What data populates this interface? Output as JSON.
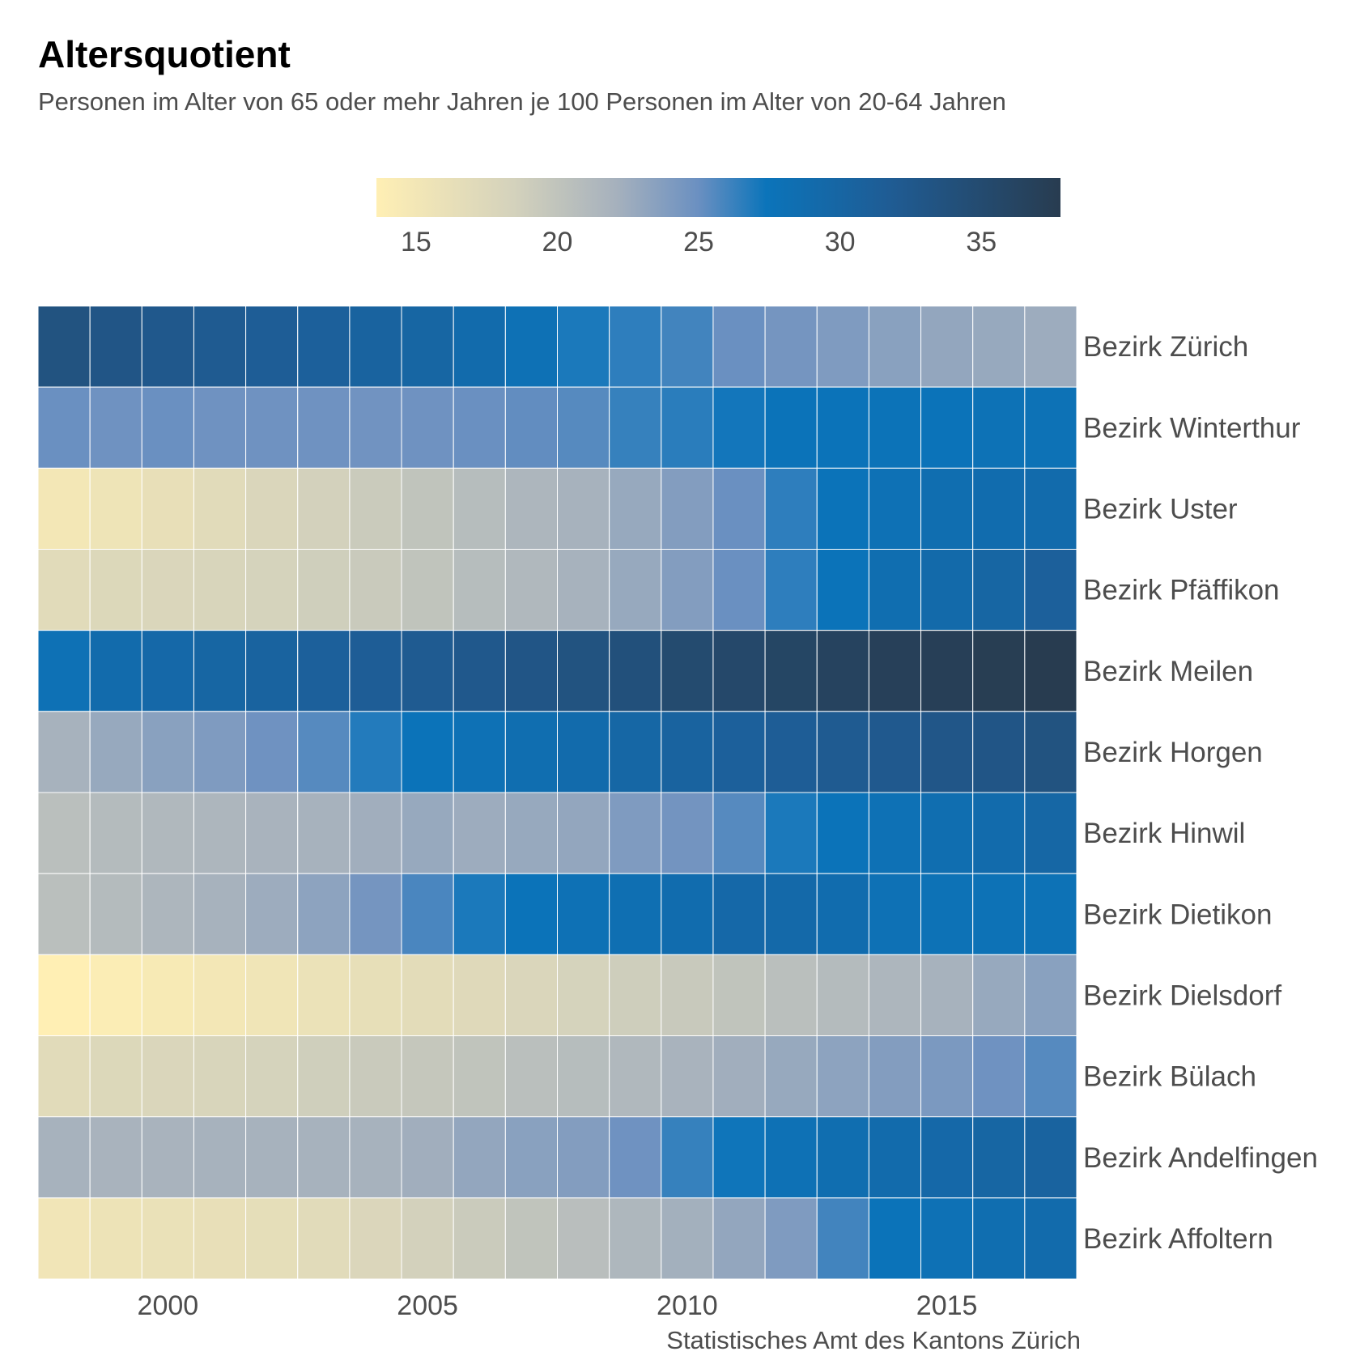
{
  "title": "Altersquotient",
  "subtitle": "Personen im Alter von 65 oder mehr Jahren je 100 Personen im Alter von 20-64 Jahren",
  "caption": "Statistisches Amt des Kantons Zürich",
  "chart_data": {
    "type": "heatmap",
    "years": [
      1998,
      1999,
      2000,
      2001,
      2002,
      2003,
      2004,
      2005,
      2006,
      2007,
      2008,
      2009,
      2010,
      2011,
      2012,
      2013,
      2014,
      2015,
      2016,
      2017
    ],
    "x_ticks": [
      2000,
      2005,
      2010,
      2015
    ],
    "legend": {
      "min": 13.6,
      "max": 37.8,
      "ticks": [
        15,
        20,
        25,
        30,
        35
      ],
      "position": "top"
    },
    "rows": [
      {
        "name": "Bezirk Zürich",
        "values": [
          33.5,
          33.0,
          32.5,
          32.0,
          31.5,
          31.0,
          30.5,
          30.0,
          29.0,
          28.0,
          27.0,
          26.5,
          26.0,
          25.0,
          24.5,
          24.0,
          23.5,
          23.0,
          22.8,
          22.5
        ]
      },
      {
        "name": "Bezirk Winterthur",
        "values": [
          25.0,
          24.8,
          25.0,
          24.8,
          24.8,
          24.8,
          24.7,
          24.8,
          25.0,
          25.2,
          25.5,
          26.3,
          26.6,
          27.2,
          27.5,
          27.5,
          27.6,
          27.5,
          27.8,
          27.8
        ]
      },
      {
        "name": "Bezirk Uster",
        "values": [
          15.0,
          15.5,
          16.2,
          17.0,
          17.8,
          18.5,
          19.2,
          20.0,
          20.8,
          21.5,
          22.0,
          22.8,
          23.8,
          25.0,
          26.5,
          27.5,
          28.0,
          28.5,
          28.8,
          29.0
        ]
      },
      {
        "name": "Bezirk Pfäffikon",
        "values": [
          17.0,
          17.5,
          17.8,
          18.0,
          18.3,
          18.8,
          19.3,
          20.0,
          20.8,
          21.3,
          22.0,
          22.8,
          23.8,
          25.0,
          26.5,
          27.5,
          28.5,
          29.2,
          30.0,
          31.0
        ]
      },
      {
        "name": "Bezirk Meilen",
        "values": [
          28.0,
          29.0,
          29.5,
          30.0,
          30.5,
          31.0,
          31.5,
          32.0,
          32.5,
          33.0,
          33.5,
          34.0,
          35.0,
          35.5,
          36.0,
          36.5,
          37.0,
          37.2,
          37.5,
          37.8
        ]
      },
      {
        "name": "Bezirk Horgen",
        "values": [
          22.0,
          22.8,
          23.5,
          24.0,
          24.8,
          25.5,
          26.8,
          27.5,
          28.0,
          28.5,
          29.0,
          29.8,
          30.5,
          31.0,
          31.5,
          32.0,
          32.3,
          32.8,
          33.0,
          33.5
        ]
      },
      {
        "name": "Bezirk Hinwil",
        "values": [
          20.5,
          21.0,
          21.3,
          21.5,
          21.8,
          22.0,
          22.3,
          22.8,
          22.5,
          22.8,
          23.0,
          24.0,
          24.6,
          25.5,
          27.0,
          27.5,
          28.0,
          28.5,
          29.0,
          29.8
        ]
      },
      {
        "name": "Bezirk Dietikon",
        "values": [
          20.5,
          21.0,
          21.5,
          22.0,
          22.5,
          23.3,
          24.5,
          25.8,
          27.0,
          27.5,
          28.0,
          28.3,
          28.8,
          29.5,
          29.3,
          28.8,
          28.0,
          27.8,
          27.8,
          27.8
        ]
      },
      {
        "name": "Bezirk Dielsdorf",
        "values": [
          13.6,
          14.0,
          14.5,
          15.0,
          15.3,
          15.8,
          16.3,
          16.8,
          17.2,
          17.8,
          18.3,
          18.9,
          19.4,
          20.0,
          20.5,
          21.0,
          21.5,
          22.0,
          22.8,
          23.5
        ]
      },
      {
        "name": "Bezirk Bülach",
        "values": [
          17.0,
          17.5,
          17.8,
          18.0,
          18.3,
          18.8,
          19.3,
          19.6,
          20.0,
          20.5,
          20.8,
          21.3,
          21.8,
          22.3,
          22.8,
          23.3,
          23.8,
          24.2,
          24.8,
          25.5
        ]
      },
      {
        "name": "Bezirk Andelfingen",
        "values": [
          22.0,
          21.8,
          21.8,
          22.0,
          22.0,
          22.0,
          22.0,
          22.3,
          23.0,
          23.5,
          23.8,
          24.8,
          26.3,
          27.3,
          28.0,
          28.5,
          29.0,
          29.5,
          30.0,
          30.5
        ]
      },
      {
        "name": "Bezirk Affoltern",
        "values": [
          15.2,
          15.6,
          16.0,
          16.2,
          16.5,
          17.0,
          17.7,
          18.5,
          19.2,
          20.0,
          20.6,
          21.4,
          22.2,
          23.0,
          24.0,
          26.0,
          27.5,
          28.0,
          28.5,
          29.0
        ]
      }
    ]
  }
}
